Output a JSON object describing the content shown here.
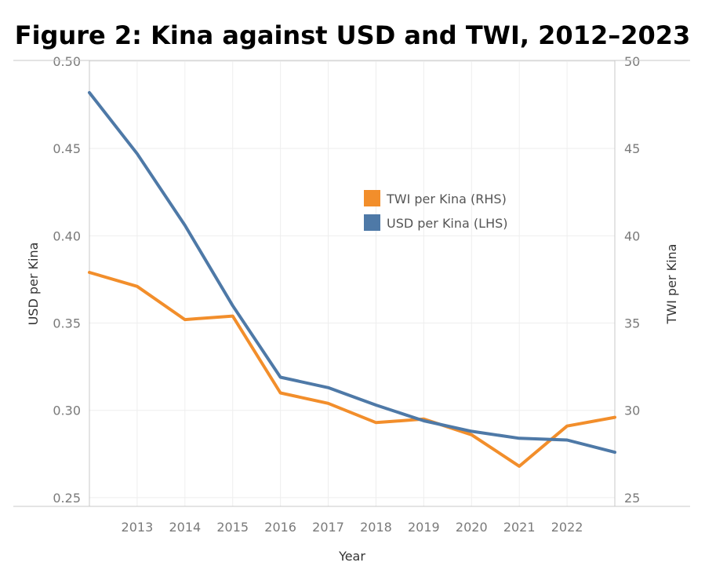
{
  "chart_data": {
    "type": "line",
    "title": "Figure 2: Kina against USD and TWI, 2012–2023",
    "xlabel": "Year",
    "ylabel_left": "USD per Kina",
    "ylabel_right": "TWI per Kina",
    "x": [
      2012,
      2013,
      2014,
      2015,
      2016,
      2017,
      2018,
      2019,
      2020,
      2021,
      2022,
      2023
    ],
    "x_tick_labels": [
      "2013",
      "2014",
      "2015",
      "2016",
      "2017",
      "2018",
      "2019",
      "2020",
      "2021",
      "2022"
    ],
    "ylim_left": [
      0.245,
      0.5
    ],
    "ylim_right": [
      24.5,
      50
    ],
    "left_ticks": [
      "0.25",
      "0.30",
      "0.35",
      "0.40",
      "0.45",
      "0.50"
    ],
    "right_ticks": [
      "25",
      "30",
      "35",
      "40",
      "45",
      "50"
    ],
    "grid": true,
    "legend_position": "center",
    "series": [
      {
        "name": "TWI per Kina (RHS)",
        "axis": "right",
        "color": "#f28e2b",
        "values": [
          37.9,
          37.1,
          35.2,
          35.4,
          31.0,
          30.4,
          29.3,
          29.5,
          28.6,
          26.8,
          29.1,
          29.6
        ]
      },
      {
        "name": "USD per Kina (LHS)",
        "axis": "left",
        "color": "#4e79a7",
        "values": [
          0.482,
          0.447,
          0.406,
          0.36,
          0.319,
          0.313,
          0.303,
          0.294,
          0.288,
          0.284,
          0.283,
          0.276
        ]
      }
    ]
  }
}
